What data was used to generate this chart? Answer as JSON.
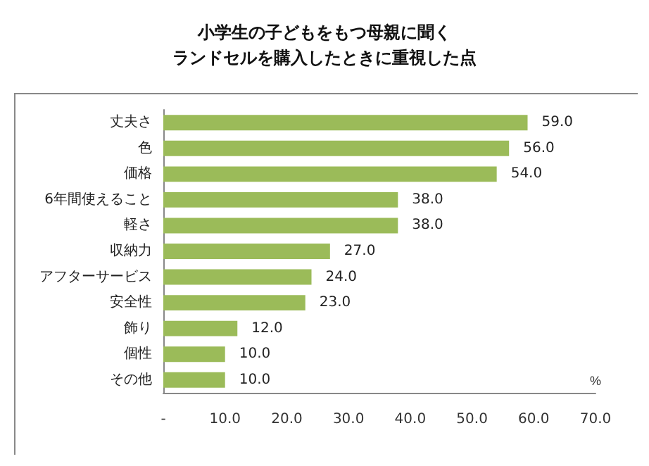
{
  "chart_data": {
    "type": "bar",
    "orientation": "horizontal",
    "title": "小学生の子どもをもつ母親に聞く",
    "subtitle": "ランドセルを購入したときに重視した点",
    "xlabel": "%",
    "categories": [
      "丈夫さ",
      "色",
      "価格",
      "6年間使えること",
      "軽さ",
      "収納力",
      "アフターサービス",
      "安全性",
      "飾り",
      "個性",
      "その他"
    ],
    "values": [
      59,
      56,
      54,
      38,
      38,
      27,
      24,
      23,
      12,
      10,
      10
    ],
    "value_labels": [
      "59.0",
      "56.0",
      "54.0",
      "38.0",
      "38.0",
      "27.0",
      "24.0",
      "23.0",
      "12.0",
      "10.0",
      "10.0"
    ],
    "color": "#9bbb59",
    "xlim": [
      0,
      70
    ],
    "xticks": [
      {
        "value": 0,
        "label": "-"
      },
      {
        "value": 10,
        "label": "10.0"
      },
      {
        "value": 20,
        "label": "20.0"
      },
      {
        "value": 30,
        "label": "30.0"
      },
      {
        "value": 40,
        "label": "40.0"
      },
      {
        "value": 50,
        "label": "50.0"
      },
      {
        "value": 60,
        "label": "60.0"
      },
      {
        "value": 70,
        "label": "70.0"
      }
    ],
    "grid": false
  }
}
